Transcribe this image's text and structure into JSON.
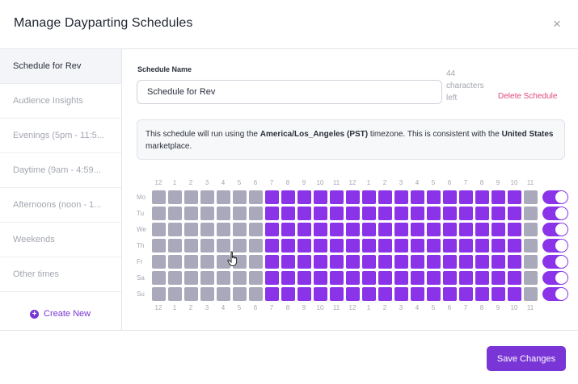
{
  "modal": {
    "title": "Manage Dayparting Schedules",
    "close_glyph": "×"
  },
  "sidebar": {
    "items": [
      {
        "label": "Schedule for Rev",
        "active": true
      },
      {
        "label": "Audience Insights",
        "active": false
      },
      {
        "label": "Evenings (5pm - 11:5...",
        "active": false
      },
      {
        "label": "Daytime (9am - 4:59...",
        "active": false
      },
      {
        "label": "Afternoons (noon - 1...",
        "active": false
      },
      {
        "label": "Weekends",
        "active": false
      },
      {
        "label": "Other times",
        "active": false
      }
    ],
    "create_new_label": "Create New"
  },
  "form": {
    "name_label": "Schedule Name",
    "name_value": "Schedule for Rev",
    "char_count": "44",
    "char_count_suffix_1": "characters",
    "char_count_suffix_2": "left",
    "delete_label": "Delete Schedule"
  },
  "info": {
    "text_1": "This schedule will run using the ",
    "timezone": "America/Los_Angeles (PST)",
    "text_2": " timezone. This is consistent with the ",
    "marketplace": "United States",
    "text_3": " marketplace."
  },
  "grid": {
    "hours": [
      "12",
      "1",
      "2",
      "3",
      "4",
      "5",
      "6",
      "7",
      "8",
      "9",
      "10",
      "11",
      "12",
      "1",
      "2",
      "3",
      "4",
      "5",
      "6",
      "7",
      "8",
      "9",
      "10",
      "11"
    ],
    "days": [
      "Mo",
      "Tu",
      "We",
      "Th",
      "Fr",
      "Sa",
      "Su"
    ],
    "active_hours_start": 7,
    "active_hours_end": 22,
    "day_toggles": [
      true,
      true,
      true,
      true,
      true,
      true,
      true
    ]
  },
  "colors": {
    "accent": "#7a35d6",
    "cell_on": "#8a33e8",
    "cell_off": "#a9a9bb",
    "delete": "#e0487a"
  },
  "footer": {
    "save_label": "Save Changes"
  }
}
